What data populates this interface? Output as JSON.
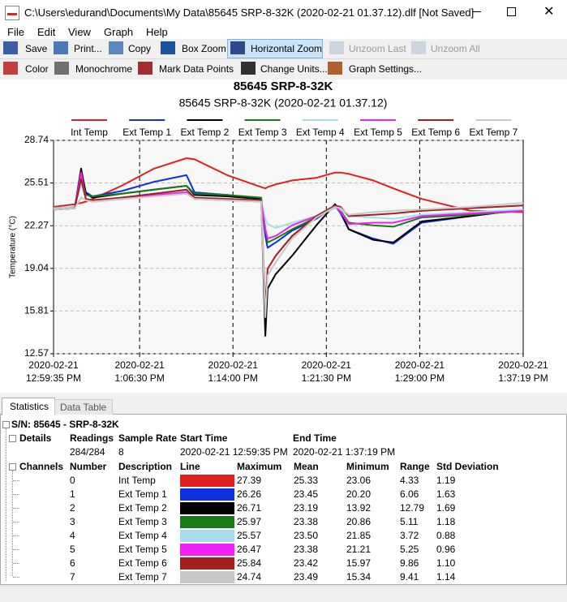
{
  "window": {
    "title": "C:\\Users\\edurand\\Documents\\My Data\\85645 SRP-8-32K (2020-02-21 01.37.12).dlf  [Not Saved]",
    "menu": [
      "File",
      "Edit",
      "View",
      "Graph",
      "Help"
    ],
    "toolbar": [
      [
        {
          "label": "Save",
          "enabled": true,
          "pressed": false
        },
        {
          "label": "Print...",
          "enabled": true,
          "pressed": false
        },
        {
          "label": "Copy",
          "enabled": true,
          "pressed": false
        },
        {
          "label": "Box Zoom",
          "enabled": true,
          "pressed": false
        },
        {
          "label": "Horizontal Zoom",
          "enabled": true,
          "pressed": true
        },
        {
          "label": "Unzoom Last",
          "enabled": false,
          "pressed": false
        },
        {
          "label": "Unzoom All",
          "enabled": false,
          "pressed": false
        }
      ],
      [
        {
          "label": "Color",
          "enabled": true,
          "pressed": false
        },
        {
          "label": "Monochrome",
          "enabled": true,
          "pressed": false
        },
        {
          "label": "Mark Data Points",
          "enabled": true,
          "pressed": false
        },
        {
          "label": "Change Units...",
          "enabled": true,
          "pressed": false
        },
        {
          "label": "Graph Settings...",
          "enabled": true,
          "pressed": false
        }
      ]
    ]
  },
  "chart_data": {
    "type": "line",
    "title": "85645 SRP-8-32K",
    "subtitle": "85645 SRP-8-32K (2020-02-21 01.37.12)",
    "y_label": "Temperature (°C)",
    "x": [
      "2020-02-21T12:59:35",
      "2020-02-21T13:01:17",
      "2020-02-21T13:01:48",
      "2020-02-21T13:02:11",
      "2020-02-21T13:02:43",
      "2020-02-21T13:05:03",
      "2020-02-21T13:07:40",
      "2020-02-21T13:10:16",
      "2020-02-21T13:10:55",
      "2020-02-21T13:13:32",
      "2020-02-21T13:16:16",
      "2020-02-21T13:16:36",
      "2020-02-21T13:16:47",
      "2020-02-21T13:17:26",
      "2020-02-21T13:18:45",
      "2020-02-21T13:20:42",
      "2020-02-21T13:22:12",
      "2020-02-21T13:22:39",
      "2020-02-21T13:23:18",
      "2020-02-21T13:25:16",
      "2020-02-21T13:26:53",
      "2020-02-21T13:29:10",
      "2020-02-21T13:33:05",
      "2020-02-21T13:37:19"
    ],
    "xlim": [
      "2020-02-21T12:59:35",
      "2020-02-21T13:37:19"
    ],
    "xticks": [
      {
        "value": "2020-02-21T12:59:35",
        "label": [
          "2020-02-21",
          "12:59:35 PM"
        ]
      },
      {
        "value": "2020-02-21T13:06:30",
        "label": [
          "2020-02-21",
          "1:06:30 PM"
        ]
      },
      {
        "value": "2020-02-21T13:14:00",
        "label": [
          "2020-02-21",
          "1:14:00 PM"
        ]
      },
      {
        "value": "2020-02-21T13:21:30",
        "label": [
          "2020-02-21",
          "1:21:30 PM"
        ]
      },
      {
        "value": "2020-02-21T13:29:00",
        "label": [
          "2020-02-21",
          "1:29:00 PM"
        ]
      },
      {
        "value": "2020-02-21T13:37:19",
        "label": [
          "2020-02-21",
          "1:37:19 PM"
        ]
      }
    ],
    "ylim": [
      12.57,
      28.74
    ],
    "yticks": [
      12.57,
      15.81,
      19.04,
      22.27,
      25.51,
      28.74
    ],
    "grid": true,
    "series": [
      {
        "name": "Int Temp",
        "color": "#e02020",
        "values": [
          23.7,
          23.9,
          24.0,
          24.1,
          24.3,
          25.3,
          26.6,
          27.39,
          27.3,
          26.1,
          25.2,
          25.1,
          25.2,
          25.4,
          25.7,
          25.9,
          26.3,
          26.3,
          26.2,
          25.7,
          25.1,
          24.3,
          23.4,
          23.3
        ]
      },
      {
        "name": "Ext Temp 1",
        "color": "#1030e0",
        "values": [
          23.5,
          23.6,
          26.2,
          24.8,
          24.5,
          24.9,
          25.6,
          26.1,
          24.8,
          24.6,
          24.3,
          21.5,
          20.6,
          21.0,
          21.9,
          22.8,
          23.8,
          23.2,
          22.0,
          21.3,
          20.9,
          22.5,
          23.0,
          23.5
        ]
      },
      {
        "name": "Ext Temp 2",
        "color": "#000000",
        "values": [
          23.5,
          23.6,
          26.6,
          24.7,
          24.4,
          24.7,
          25.0,
          25.3,
          24.6,
          24.5,
          24.3,
          13.92,
          17.5,
          18.6,
          20.0,
          22.3,
          23.9,
          23.4,
          22.0,
          21.2,
          21.0,
          22.6,
          23.0,
          23.5
        ]
      },
      {
        "name": "Ext Temp 3",
        "color": "#1a7a1a",
        "values": [
          23.6,
          23.7,
          25.9,
          24.6,
          24.5,
          24.7,
          25.0,
          25.3,
          24.7,
          24.6,
          24.4,
          22.0,
          21.0,
          21.3,
          22.0,
          22.9,
          23.8,
          23.4,
          22.5,
          22.3,
          22.2,
          22.9,
          23.1,
          23.4
        ]
      },
      {
        "name": "Ext Temp 4",
        "color": "#a8dce8",
        "values": [
          23.6,
          23.7,
          25.4,
          24.3,
          24.2,
          24.4,
          24.7,
          24.9,
          24.4,
          24.3,
          24.2,
          22.8,
          22.4,
          22.1,
          22.5,
          23.0,
          23.6,
          23.5,
          23.0,
          22.9,
          22.8,
          23.1,
          23.3,
          23.5
        ]
      },
      {
        "name": "Ext Temp 5",
        "color": "#f020f0",
        "values": [
          23.5,
          23.6,
          26.3,
          24.2,
          24.1,
          24.3,
          24.6,
          24.8,
          24.3,
          24.2,
          24.1,
          22.0,
          21.3,
          21.5,
          22.3,
          23.0,
          23.8,
          23.3,
          22.4,
          22.5,
          22.5,
          23.0,
          23.2,
          23.4
        ]
      },
      {
        "name": "Ext Temp 6",
        "color": "#a02020",
        "values": [
          23.5,
          23.6,
          25.8,
          24.3,
          24.2,
          24.4,
          24.7,
          25.0,
          24.4,
          24.3,
          24.2,
          15.97,
          19.0,
          20.0,
          21.5,
          23.0,
          23.8,
          23.7,
          23.0,
          23.1,
          23.2,
          23.4,
          23.6,
          23.8
        ]
      },
      {
        "name": "Ext Temp 7",
        "color": "#c8c8c8",
        "values": [
          23.5,
          23.6,
          24.4,
          24.2,
          24.1,
          24.3,
          24.5,
          24.7,
          24.3,
          24.2,
          24.1,
          15.34,
          18.5,
          19.5,
          21.3,
          22.9,
          23.7,
          23.6,
          23.1,
          23.3,
          23.4,
          23.5,
          23.7,
          24.0
        ]
      }
    ]
  },
  "tabs": [
    "Statistics",
    "Data Table"
  ],
  "statistics": {
    "device": "S/N: 85645 - SRP-8-32K",
    "details": {
      "label": "Details",
      "headers": [
        "Readings",
        "Sample Rate",
        "Start Time",
        "End Time"
      ],
      "values": [
        "284/284",
        "8",
        "2020-02-21 12:59:35 PM",
        "2020-02-21 1:37:19 PM"
      ]
    },
    "channels": {
      "label": "Channels",
      "headers": [
        "Number",
        "Description",
        "Line",
        "Maximum",
        "Mean",
        "Minimum",
        "Range",
        "Std Deviation"
      ],
      "rows": [
        [
          "0",
          "Int Temp",
          "27.39",
          "25.33",
          "23.06",
          "4.33",
          "1.19"
        ],
        [
          "1",
          "Ext Temp 1",
          "26.26",
          "23.45",
          "20.20",
          "6.06",
          "1.63"
        ],
        [
          "2",
          "Ext Temp 2",
          "26.71",
          "23.19",
          "13.92",
          "12.79",
          "1.69"
        ],
        [
          "3",
          "Ext Temp 3",
          "25.97",
          "23.38",
          "20.86",
          "5.11",
          "1.18"
        ],
        [
          "4",
          "Ext Temp 4",
          "25.57",
          "23.50",
          "21.85",
          "3.72",
          "0.88"
        ],
        [
          "5",
          "Ext Temp 5",
          "26.47",
          "23.38",
          "21.21",
          "5.25",
          "0.96"
        ],
        [
          "6",
          "Ext Temp 6",
          "25.84",
          "23.42",
          "15.97",
          "9.86",
          "1.10"
        ],
        [
          "7",
          "Ext Temp 7",
          "24.74",
          "23.49",
          "15.34",
          "9.41",
          "1.14"
        ]
      ]
    }
  }
}
